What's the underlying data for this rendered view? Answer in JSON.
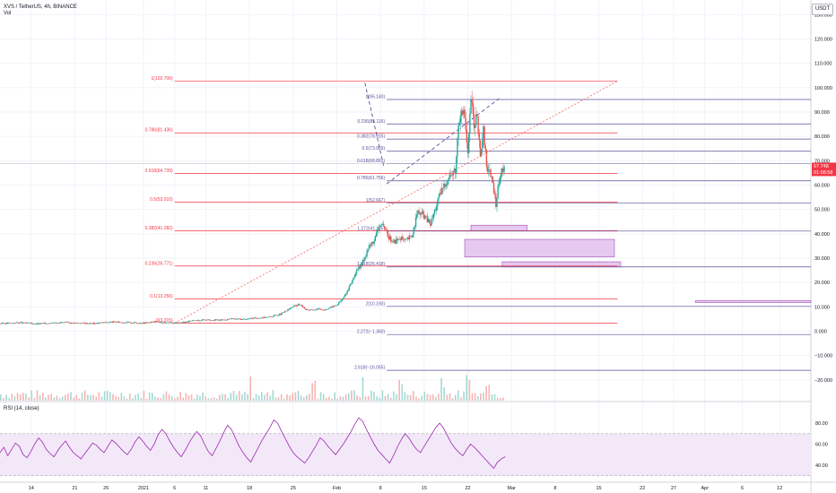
{
  "header": {
    "title": "XVS / TetherUS, 4h, BINANCE",
    "volume_label": "Vol",
    "rsi_label": "RSI (14, close)",
    "currency_button": "USDT"
  },
  "colors": {
    "fib_retracement": "#f23645",
    "fib_extension": "#5b4e9a",
    "candle_up": "#26a69a",
    "candle_down": "#ef5350",
    "trendline": "#f5766f",
    "trendline_dashed": "#5b4e9a",
    "zone_fill": "#e6c9ef",
    "zone_stroke": "#b36fc6",
    "rsi_line": "#9c27b0",
    "rsi_band": "#f3e8f8",
    "price_tag": "#f23645"
  },
  "chart_data": {
    "type": "candlestick",
    "symbol": "XVS / TetherUS",
    "interval": "4h",
    "exchange": "BINANCE",
    "y_axis": {
      "ticks": [
        130,
        120,
        110,
        100,
        90,
        80,
        70,
        60,
        50,
        40,
        30,
        20,
        10,
        0,
        -10,
        -20
      ],
      "tick_labels": [
        "130.000",
        "120.000",
        "110.000",
        "100.000",
        "90.000",
        "80.000",
        "70.000",
        "60.000",
        "50.000",
        "40.000",
        "30.000",
        "20.000",
        "10.000",
        "0.000",
        "−10.000",
        "−20.000"
      ],
      "range": [
        -23,
        136
      ]
    },
    "x_axis": {
      "tick_labels": [
        "14",
        "21",
        "26",
        "2021",
        "6",
        "11",
        "18",
        "25",
        "Feb",
        "8",
        "15",
        "22",
        "Mar",
        "8",
        "15",
        "22",
        "27",
        "Apr",
        "6",
        "12"
      ],
      "tick_days": [
        -18,
        -11,
        -6,
        0,
        5,
        10,
        17,
        24,
        31,
        38,
        45,
        52,
        59,
        66,
        73,
        80,
        85,
        90,
        96,
        102
      ],
      "range": [
        -23,
        107
      ]
    },
    "current_price": "67.748",
    "countdown": "01:08:58",
    "fib_retracement": [
      {
        "ratio": "1",
        "price": 102.706,
        "label": "1(102.706)"
      },
      {
        "ratio": "0.786",
        "price": 81.436,
        "label": "0.786(81.436)"
      },
      {
        "ratio": "0.618",
        "price": 64.739,
        "label": "0.618(64.739)"
      },
      {
        "ratio": "0.5",
        "price": 53.01,
        "label": "0.5(53.010)"
      },
      {
        "ratio": "0.382",
        "price": 41.282,
        "label": "0.382(41.282)"
      },
      {
        "ratio": "0.236",
        "price": 26.771,
        "label": "0.236(26.771)"
      },
      {
        "ratio": "0.1",
        "price": 13.256,
        "label": "0.1(13.256)"
      },
      {
        "ratio": "0",
        "price": 3.315,
        "label": "0(3.315)"
      }
    ],
    "fib_extension": [
      {
        "ratio": "0",
        "price": 95.14,
        "label": "0(95.140)"
      },
      {
        "ratio": "0.236",
        "price": 85.116,
        "label": "0.236(85.116)"
      },
      {
        "ratio": "0.382",
        "price": 78.915,
        "label": "0.382(78.915)"
      },
      {
        "ratio": "0.5",
        "price": 73.903,
        "label": "0.5(73.903)"
      },
      {
        "ratio": "0.618",
        "price": 68.891,
        "label": "0.618(68.891)"
      },
      {
        "ratio": "0.786",
        "price": 61.756,
        "label": "0.786(61.756)"
      },
      {
        "ratio": "1",
        "price": 52.667,
        "label": "1(52.667)"
      },
      {
        "ratio": "1.272",
        "price": 41.115,
        "label": "1.272(41.115)"
      },
      {
        "ratio": "1.618",
        "price": 26.418,
        "label": "1.618(26.418)"
      },
      {
        "ratio": "2",
        "price": 10.193,
        "label": "2(10.193)"
      },
      {
        "ratio": "2.272",
        "price": -1.36,
        "label": "2.272(−1.360)"
      },
      {
        "ratio": "2.618",
        "price": -16.055,
        "label": "2.618(−16.055)"
      }
    ],
    "zones": [
      {
        "x": [
          52.5,
          61.5
        ],
        "y": [
          41.2,
          43.5
        ]
      },
      {
        "x": [
          51.5,
          75.5
        ],
        "y": [
          30.5,
          37.7
        ]
      },
      {
        "x": [
          57.5,
          76.5
        ],
        "y": [
          26.4,
          28.5
        ]
      },
      {
        "x": [
          88.5,
          107
        ],
        "y": [
          11.8,
          12.6
        ]
      }
    ],
    "trendlines": [
      {
        "style": "dotted",
        "from": [
          5,
          3.315
        ],
        "to": [
          76,
          102.706
        ]
      },
      {
        "style": "dashed",
        "from": [
          39,
          60.5
        ],
        "to": [
          57,
          95.5
        ]
      },
      {
        "style": "dashed",
        "from": [
          35.5,
          102
        ],
        "to": [
          38.5,
          68
        ]
      }
    ],
    "price_path": [
      [
        -23,
        3.2
      ],
      [
        -20,
        3.5
      ],
      [
        -17,
        3.0
      ],
      [
        -14,
        3.6
      ],
      [
        -11,
        3.4
      ],
      [
        -8,
        3.2
      ],
      [
        -5,
        3.8
      ],
      [
        -2,
        3.5
      ],
      [
        0,
        3.4
      ],
      [
        2,
        3.9
      ],
      [
        4,
        3.3
      ],
      [
        6,
        3.6
      ],
      [
        8,
        4.2
      ],
      [
        10,
        4.8
      ],
      [
        12,
        4.5
      ],
      [
        14,
        5.0
      ],
      [
        16,
        4.9
      ],
      [
        18,
        5.4
      ],
      [
        20,
        5.8
      ],
      [
        22,
        7.0
      ],
      [
        23,
        8.5
      ],
      [
        24,
        10.2
      ],
      [
        25,
        11.0
      ],
      [
        26,
        9.0
      ],
      [
        27,
        8.6
      ],
      [
        28,
        9.2
      ],
      [
        29,
        8.8
      ],
      [
        30,
        9.8
      ],
      [
        31,
        10.8
      ],
      [
        32,
        13.5
      ],
      [
        33,
        18.0
      ],
      [
        34,
        24.0
      ],
      [
        35,
        27.5
      ],
      [
        36,
        34.0
      ],
      [
        37,
        37.5
      ],
      [
        38,
        44.5
      ],
      [
        39,
        40.0
      ],
      [
        40,
        36.5
      ],
      [
        41,
        38.0
      ],
      [
        42,
        37.0
      ],
      [
        43,
        39.0
      ],
      [
        44,
        49.0
      ],
      [
        45,
        47.5
      ],
      [
        46,
        44.0
      ],
      [
        47,
        52.0
      ],
      [
        48,
        59.0
      ],
      [
        49,
        63.5
      ],
      [
        50,
        66.0
      ],
      [
        50.5,
        85.0
      ],
      [
        51,
        93.0
      ],
      [
        51.5,
        88.0
      ],
      [
        52,
        72.0
      ],
      [
        52.5,
        96.0
      ],
      [
        53,
        84.0
      ],
      [
        53.5,
        90.0
      ],
      [
        54,
        70.0
      ],
      [
        54.5,
        82.0
      ],
      [
        55,
        68.0
      ],
      [
        55.5,
        66.0
      ],
      [
        56,
        60.0
      ],
      [
        56.5,
        52.0
      ],
      [
        57,
        62.0
      ],
      [
        57.5,
        66.0
      ],
      [
        58,
        67.75
      ]
    ],
    "volume_spikes_day": [
      17,
      27,
      35,
      41,
      48,
      52,
      55
    ],
    "rsi": {
      "levels": [
        80,
        70,
        60,
        40,
        30
      ],
      "tick_labels": [
        "80.00",
        "60.00",
        "40.00"
      ],
      "range": [
        28,
        92
      ],
      "values": [
        52,
        57,
        49,
        55,
        61,
        58,
        50,
        47,
        53,
        60,
        66,
        62,
        55,
        51,
        48,
        54,
        59,
        63,
        57,
        52,
        49,
        46,
        51,
        56,
        61,
        59,
        55,
        52,
        58,
        64,
        61,
        57,
        53,
        50,
        55,
        62,
        67,
        63,
        58,
        54,
        60,
        69,
        74,
        70,
        63,
        57,
        52,
        48,
        54,
        61,
        67,
        72,
        68,
        60,
        53,
        49,
        56,
        63,
        71,
        78,
        74,
        66,
        58,
        52,
        47,
        43,
        50,
        57,
        64,
        70,
        76,
        83,
        80,
        72,
        65,
        58,
        52,
        48,
        45,
        42,
        47,
        53,
        59,
        66,
        63,
        58,
        54,
        50,
        55,
        60,
        66,
        72,
        79,
        85,
        82,
        74,
        67,
        60,
        54,
        50,
        46,
        42,
        49,
        57,
        64,
        70,
        66,
        60,
        55,
        52,
        58,
        64,
        70,
        76,
        80,
        75,
        68,
        61,
        56,
        52,
        49,
        55,
        60,
        57,
        53,
        49,
        45,
        41,
        37,
        43,
        46,
        48
      ]
    }
  }
}
